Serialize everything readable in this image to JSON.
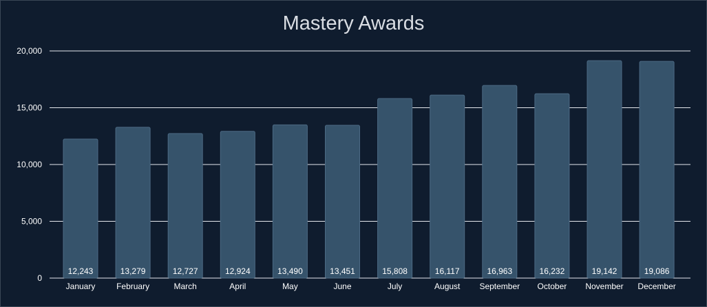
{
  "chart_data": {
    "type": "bar",
    "title": "Mastery Awards",
    "xlabel": "",
    "ylabel": "",
    "categories": [
      "January",
      "February",
      "March",
      "April",
      "May",
      "June",
      "July",
      "August",
      "September",
      "October",
      "November",
      "December"
    ],
    "values": [
      12243,
      13279,
      12727,
      12924,
      13490,
      13451,
      15808,
      16117,
      16963,
      16232,
      19142,
      19086
    ],
    "value_labels": [
      "12,243",
      "13,279",
      "12,727",
      "12,924",
      "13,490",
      "13,451",
      "15,808",
      "16,117",
      "16,963",
      "16,232",
      "19,142",
      "19,086"
    ],
    "ylim": [
      0,
      20000
    ],
    "yticks": [
      0,
      5000,
      10000,
      15000,
      20000
    ],
    "ytick_labels": [
      "0",
      "5,000",
      "10,000",
      "15,000",
      "20,000"
    ],
    "grid": true,
    "legend": "none",
    "colors": {
      "background": "#0f1c2e",
      "bar": "#36536b",
      "bar_edge": "#4c6a84",
      "grid": "#e6e9ee",
      "text": "#ffffff",
      "title": "#d9dde3"
    }
  }
}
